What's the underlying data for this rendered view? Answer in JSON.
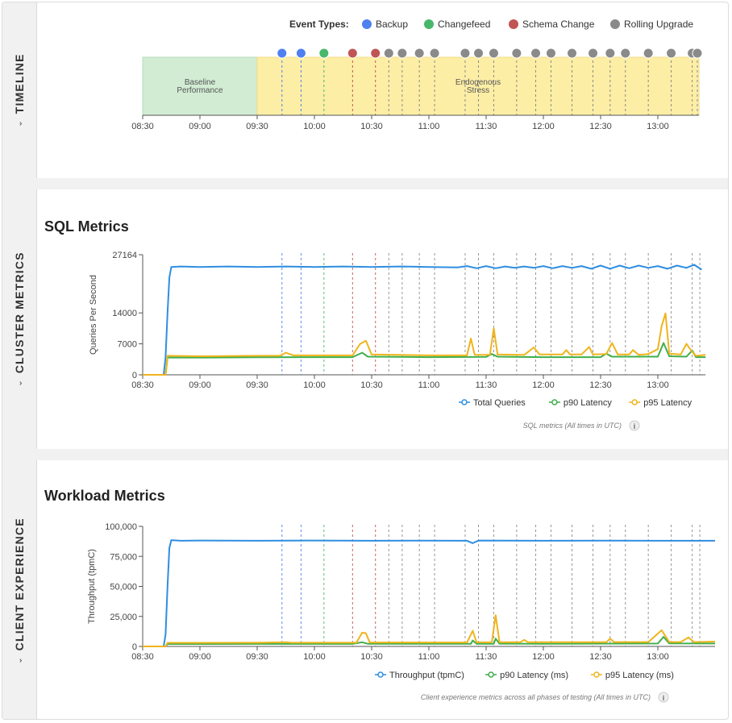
{
  "sections": {
    "timeline": "TIMELINE",
    "cluster": "CLUSTER METRICS",
    "client": "CLIENT EXPERIENCE",
    "collapse_glyph": "⌄"
  },
  "timeline": {
    "legend_title": "Event Types:",
    "event_types": [
      {
        "name": "Backup",
        "color": "#4f7ff0"
      },
      {
        "name": "Changefeed",
        "color": "#47b86a"
      },
      {
        "name": "Schema Change",
        "color": "#c05555"
      },
      {
        "name": "Rolling Upgrade",
        "color": "#8a8a8a"
      }
    ],
    "phases": [
      {
        "label": "Baseline Performance",
        "start": "08:30",
        "end": "09:30",
        "color": "#d1ecd3"
      },
      {
        "label": "Endogenous Stress",
        "start": "09:30",
        "end": "13:23",
        "color": "#fdeea5"
      }
    ],
    "events": [
      {
        "time": "09:43",
        "type": "Backup"
      },
      {
        "time": "09:53",
        "type": "Backup"
      },
      {
        "time": "10:05",
        "type": "Changefeed"
      },
      {
        "time": "10:20",
        "type": "Schema Change"
      },
      {
        "time": "10:32",
        "type": "Schema Change"
      },
      {
        "time": "10:39",
        "type": "Rolling Upgrade"
      },
      {
        "time": "10:46",
        "type": "Rolling Upgrade"
      },
      {
        "time": "10:55",
        "type": "Rolling Upgrade"
      },
      {
        "time": "11:03",
        "type": "Rolling Upgrade"
      },
      {
        "time": "11:19",
        "type": "Rolling Upgrade"
      },
      {
        "time": "11:26",
        "type": "Rolling Upgrade"
      },
      {
        "time": "11:34",
        "type": "Rolling Upgrade"
      },
      {
        "time": "11:46",
        "type": "Rolling Upgrade"
      },
      {
        "time": "11:56",
        "type": "Rolling Upgrade"
      },
      {
        "time": "12:04",
        "type": "Rolling Upgrade"
      },
      {
        "time": "12:15",
        "type": "Rolling Upgrade"
      },
      {
        "time": "12:26",
        "type": "Rolling Upgrade"
      },
      {
        "time": "12:35",
        "type": "Rolling Upgrade"
      },
      {
        "time": "12:43",
        "type": "Rolling Upgrade"
      },
      {
        "time": "12:55",
        "type": "Rolling Upgrade"
      },
      {
        "time": "13:07",
        "type": "Rolling Upgrade"
      },
      {
        "time": "13:18",
        "type": "Rolling Upgrade"
      },
      {
        "time": "13:22",
        "type": "Rolling Upgrade"
      }
    ],
    "x_ticks": [
      "08:30",
      "09:00",
      "09:30",
      "10:00",
      "10:30",
      "11:00",
      "11:30",
      "12:00",
      "12:30",
      "13:00"
    ]
  },
  "chart_data": [
    {
      "id": "sql",
      "type": "line",
      "title": "SQL Metrics",
      "ylabel": "Queries Per Second",
      "ylim": [
        0,
        27164
      ],
      "y_ticks": [
        0,
        7000,
        14000,
        27164
      ],
      "y_tick_labels": [
        "0",
        "7000",
        "14000",
        "27164"
      ],
      "xlim": [
        "08:30",
        "13:25"
      ],
      "x_ticks": [
        "08:30",
        "09:00",
        "09:30",
        "10:00",
        "10:30",
        "11:00",
        "11:30",
        "12:00",
        "12:30",
        "13:00"
      ],
      "legend_placement": "bottom-right",
      "caption": "SQL metrics (All times in UTC)",
      "series": [
        {
          "name": "Total Queries",
          "color": "#2e8ee0",
          "points": [
            [
              "08:30",
              0
            ],
            [
              "08:41",
              0
            ],
            [
              "08:42",
              4000
            ],
            [
              "08:43",
              14000
            ],
            [
              "08:44",
              22000
            ],
            [
              "08:45",
              24400
            ],
            [
              "08:50",
              24500
            ],
            [
              "09:00",
              24400
            ],
            [
              "09:15",
              24500
            ],
            [
              "09:30",
              24400
            ],
            [
              "09:45",
              24500
            ],
            [
              "10:00",
              24400
            ],
            [
              "10:15",
              24500
            ],
            [
              "10:30",
              24400
            ],
            [
              "10:45",
              24500
            ],
            [
              "11:00",
              24400
            ],
            [
              "11:15",
              24300
            ],
            [
              "11:20",
              24600
            ],
            [
              "11:25",
              24100
            ],
            [
              "11:30",
              24600
            ],
            [
              "11:35",
              24100
            ],
            [
              "11:40",
              24500
            ],
            [
              "11:45",
              24200
            ],
            [
              "11:50",
              24500
            ],
            [
              "11:55",
              24200
            ],
            [
              "12:00",
              24600
            ],
            [
              "12:05",
              24100
            ],
            [
              "12:10",
              24600
            ],
            [
              "12:15",
              24200
            ],
            [
              "12:20",
              24600
            ],
            [
              "12:25",
              24000
            ],
            [
              "12:30",
              24700
            ],
            [
              "12:35",
              24000
            ],
            [
              "12:40",
              24700
            ],
            [
              "12:45",
              24100
            ],
            [
              "12:50",
              24700
            ],
            [
              "12:55",
              24200
            ],
            [
              "13:00",
              24600
            ],
            [
              "13:05",
              24000
            ],
            [
              "13:10",
              24700
            ],
            [
              "13:15",
              24200
            ],
            [
              "13:19",
              24900
            ],
            [
              "13:23",
              23800
            ]
          ]
        },
        {
          "name": "p90 Latency",
          "color": "#3fae4b",
          "points": [
            [
              "08:30",
              0
            ],
            [
              "08:42",
              0
            ],
            [
              "08:43",
              3900
            ],
            [
              "09:00",
              3900
            ],
            [
              "09:30",
              3950
            ],
            [
              "10:00",
              4000
            ],
            [
              "10:20",
              4000
            ],
            [
              "10:25",
              5000
            ],
            [
              "10:28",
              4100
            ],
            [
              "11:00",
              4000
            ],
            [
              "11:30",
              4050
            ],
            [
              "11:33",
              4700
            ],
            [
              "11:36",
              4100
            ],
            [
              "12:00",
              4000
            ],
            [
              "12:30",
              4000
            ],
            [
              "12:33",
              4800
            ],
            [
              "12:36",
              4100
            ],
            [
              "13:00",
              4100
            ],
            [
              "13:03",
              7200
            ],
            [
              "13:06",
              4200
            ],
            [
              "13:15",
              4100
            ],
            [
              "13:18",
              5500
            ],
            [
              "13:20",
              4000
            ],
            [
              "13:25",
              4000
            ]
          ]
        },
        {
          "name": "p95 Latency",
          "color": "#f0b41c",
          "points": [
            [
              "08:30",
              0
            ],
            [
              "08:42",
              0
            ],
            [
              "08:43",
              4300
            ],
            [
              "09:00",
              4200
            ],
            [
              "09:30",
              4300
            ],
            [
              "09:42",
              4300
            ],
            [
              "09:45",
              5000
            ],
            [
              "09:49",
              4400
            ],
            [
              "10:20",
              4400
            ],
            [
              "10:24",
              7000
            ],
            [
              "10:27",
              7700
            ],
            [
              "10:30",
              4600
            ],
            [
              "11:00",
              4400
            ],
            [
              "11:20",
              4400
            ],
            [
              "11:22",
              8200
            ],
            [
              "11:24",
              4500
            ],
            [
              "11:32",
              4500
            ],
            [
              "11:34",
              10500
            ],
            [
              "11:36",
              4600
            ],
            [
              "11:50",
              4500
            ],
            [
              "11:55",
              6200
            ],
            [
              "11:58",
              4600
            ],
            [
              "12:10",
              4600
            ],
            [
              "12:12",
              5600
            ],
            [
              "12:14",
              4600
            ],
            [
              "12:20",
              4600
            ],
            [
              "12:24",
              6300
            ],
            [
              "12:26",
              4600
            ],
            [
              "12:33",
              4700
            ],
            [
              "12:36",
              7200
            ],
            [
              "12:39",
              4600
            ],
            [
              "12:45",
              4600
            ],
            [
              "12:47",
              5600
            ],
            [
              "12:50",
              4500
            ],
            [
              "12:55",
              4700
            ],
            [
              "13:00",
              5800
            ],
            [
              "13:02",
              11000
            ],
            [
              "13:04",
              13900
            ],
            [
              "13:06",
              4800
            ],
            [
              "13:12",
              4600
            ],
            [
              "13:15",
              7000
            ],
            [
              "13:18",
              5200
            ],
            [
              "13:20",
              4300
            ],
            [
              "13:25",
              4500
            ]
          ]
        }
      ]
    },
    {
      "id": "workload",
      "type": "line",
      "title": "Workload Metrics",
      "ylabel": "Throughput (tpmC)",
      "ylim": [
        0,
        100000
      ],
      "y_ticks": [
        0,
        25000,
        50000,
        75000,
        100000
      ],
      "y_tick_labels": [
        "0",
        "25,000",
        "50,000",
        "75,000",
        "100,000"
      ],
      "xlim": [
        "08:30",
        "13:30"
      ],
      "x_ticks": [
        "08:30",
        "09:00",
        "09:30",
        "10:00",
        "10:30",
        "11:00",
        "11:30",
        "12:00",
        "12:30",
        "13:00"
      ],
      "legend_placement": "bottom-right",
      "caption": "Client experience metrics across all phases of testing (All times in UTC)",
      "series": [
        {
          "name": "Throughput (tpmC)",
          "color": "#2e8ee0",
          "points": [
            [
              "08:30",
              0
            ],
            [
              "08:41",
              0
            ],
            [
              "08:42",
              10000
            ],
            [
              "08:43",
              50000
            ],
            [
              "08:44",
              82000
            ],
            [
              "08:45",
              88500
            ],
            [
              "08:50",
              88000
            ],
            [
              "09:00",
              88200
            ],
            [
              "09:30",
              88000
            ],
            [
              "10:00",
              88200
            ],
            [
              "10:30",
              88000
            ],
            [
              "11:00",
              88100
            ],
            [
              "11:20",
              88000
            ],
            [
              "11:23",
              86000
            ],
            [
              "11:26",
              88200
            ],
            [
              "12:00",
              88000
            ],
            [
              "12:30",
              88100
            ],
            [
              "13:00",
              88000
            ],
            [
              "13:30",
              88000
            ]
          ]
        },
        {
          "name": "p90 Latency (ms)",
          "color": "#3fae4b",
          "points": [
            [
              "08:30",
              0
            ],
            [
              "08:42",
              0
            ],
            [
              "08:43",
              2000
            ],
            [
              "09:30",
              2100
            ],
            [
              "10:20",
              2100
            ],
            [
              "10:25",
              3500
            ],
            [
              "10:28",
              2200
            ],
            [
              "11:22",
              2200
            ],
            [
              "11:23",
              5000
            ],
            [
              "11:25",
              2200
            ],
            [
              "11:34",
              2200
            ],
            [
              "11:35",
              6500
            ],
            [
              "11:37",
              2300
            ],
            [
              "12:00",
              2200
            ],
            [
              "13:00",
              2400
            ],
            [
              "13:03",
              8000
            ],
            [
              "13:06",
              2500
            ],
            [
              "13:30",
              2400
            ]
          ]
        },
        {
          "name": "p95 Latency (ms)",
          "color": "#f0b41c",
          "points": [
            [
              "08:30",
              0
            ],
            [
              "08:42",
              0
            ],
            [
              "08:43",
              3000
            ],
            [
              "09:30",
              3100
            ],
            [
              "09:45",
              3500
            ],
            [
              "09:48",
              3100
            ],
            [
              "10:22",
              3100
            ],
            [
              "10:25",
              11500
            ],
            [
              "10:27",
              11000
            ],
            [
              "10:29",
              3300
            ],
            [
              "11:20",
              3300
            ],
            [
              "11:23",
              13000
            ],
            [
              "11:25",
              3400
            ],
            [
              "11:33",
              3400
            ],
            [
              "11:35",
              26000
            ],
            [
              "11:37",
              3500
            ],
            [
              "11:48",
              3500
            ],
            [
              "11:50",
              5500
            ],
            [
              "11:52",
              3500
            ],
            [
              "12:33",
              3500
            ],
            [
              "12:35",
              6500
            ],
            [
              "12:37",
              3600
            ],
            [
              "12:55",
              3600
            ],
            [
              "13:02",
              13500
            ],
            [
              "13:06",
              3700
            ],
            [
              "13:12",
              3600
            ],
            [
              "13:16",
              7500
            ],
            [
              "13:19",
              3600
            ],
            [
              "13:30",
              4000
            ]
          ]
        }
      ]
    }
  ]
}
